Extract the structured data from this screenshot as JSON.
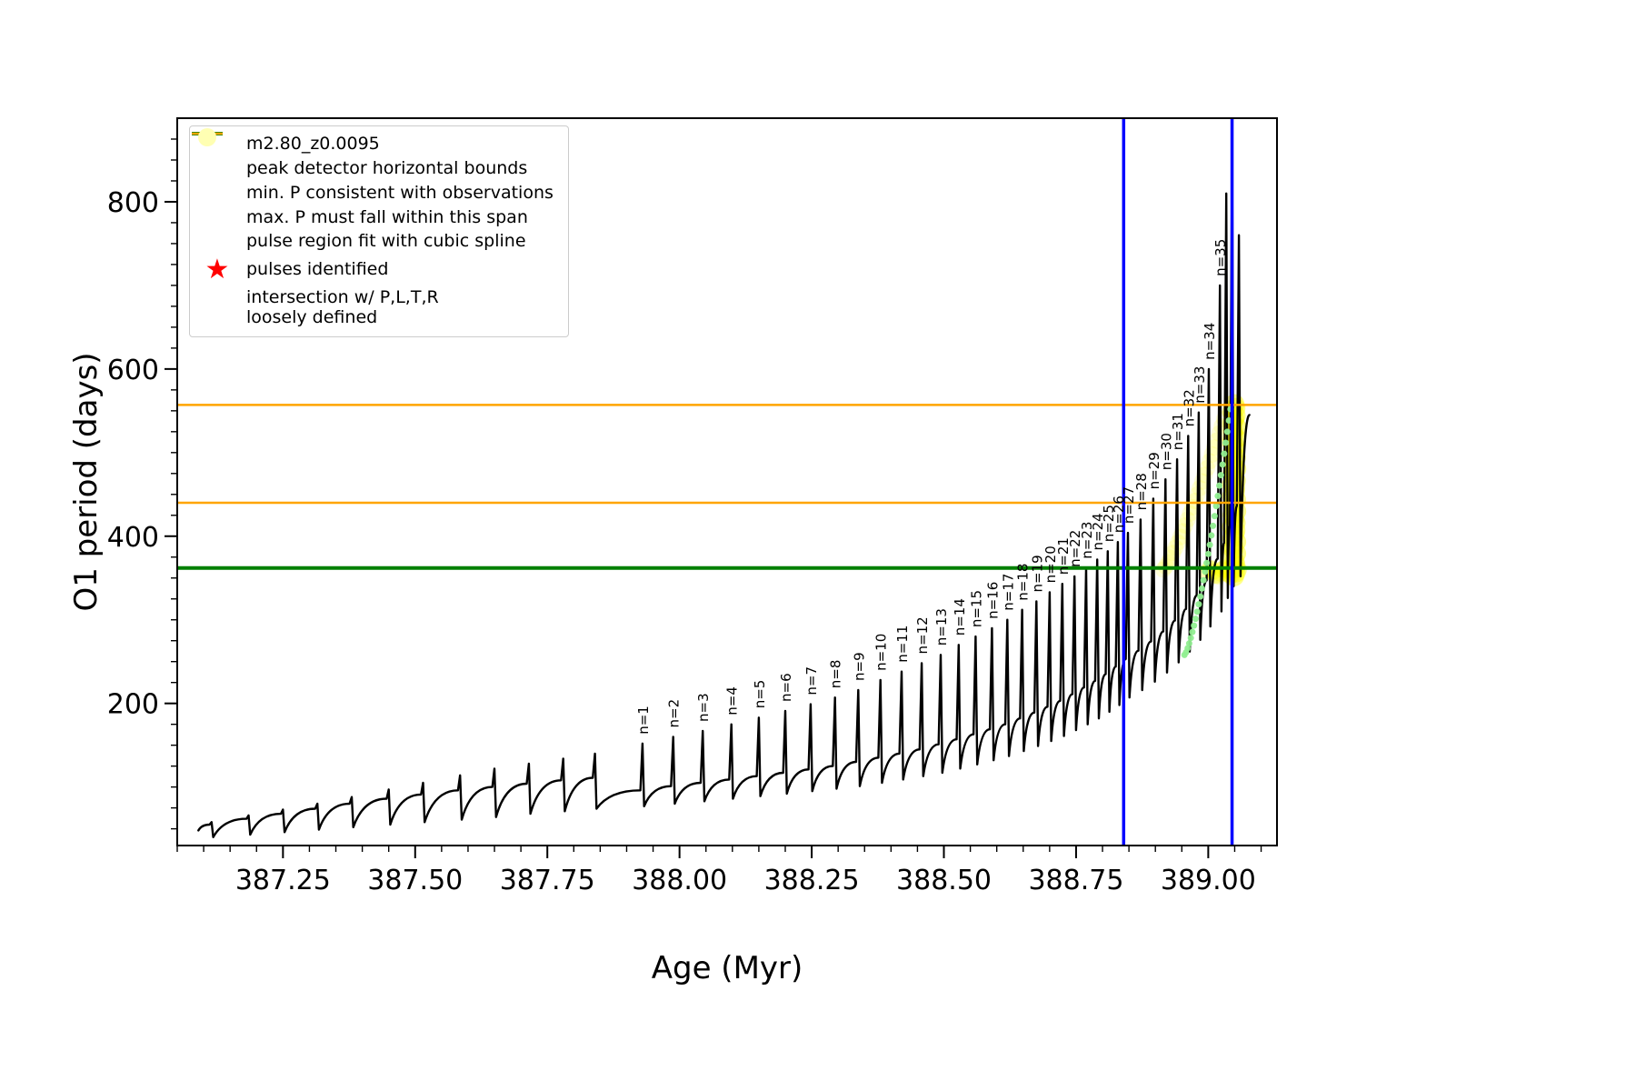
{
  "chart_data": {
    "type": "line",
    "title": "",
    "xlabel": "Age (Myr)",
    "ylabel": "O1 period (days)",
    "xlim": [
      387.05,
      389.13
    ],
    "ylim": [
      30,
      900
    ],
    "xticks": [
      387.25,
      387.5,
      387.75,
      388.0,
      388.25,
      388.5,
      388.75,
      389.0
    ],
    "xtick_labels": [
      "387.25",
      "387.50",
      "387.75",
      "388.00",
      "388.25",
      "388.50",
      "388.75",
      "389.00"
    ],
    "yticks": [
      200,
      400,
      600,
      800
    ],
    "ytick_labels": [
      "200",
      "400",
      "600",
      "800"
    ],
    "x_minor_step": 0.05,
    "y_minor_step": 25,
    "grid": false,
    "legend_position": "upper-left",
    "colors": {
      "series": "#000000",
      "peak_bounds": "#0000ff",
      "min_p": "#008000",
      "max_p": "#ffa500",
      "spline": "#90ee90",
      "pulse_star": "#ff0000",
      "intersection": "#ffff00",
      "intersection_legend": "#ffffb3"
    },
    "hlines": [
      {
        "name": "min-p-consistent",
        "y": 362,
        "color": "#008000",
        "width": 4
      },
      {
        "name": "max-p-span-low",
        "y": 440,
        "color": "#ffa500",
        "width": 2.5
      },
      {
        "name": "max-p-span-high",
        "y": 557,
        "color": "#ffa500",
        "width": 2.5
      }
    ],
    "vlines": [
      {
        "name": "peak-detector-left",
        "x": 388.84,
        "color": "#0000ff",
        "width": 3.5
      },
      {
        "name": "peak-detector-right",
        "x": 389.045,
        "color": "#0000ff",
        "width": 3.5
      }
    ],
    "series_name": "m2.80_z0.0095",
    "curve_start": {
      "x": 387.09,
      "y": 48
    },
    "curve_end": {
      "x": 389.078,
      "y": 545
    },
    "pre_pulses": [
      {
        "x": 387.115,
        "base": 55,
        "peak": 58,
        "dip": 40
      },
      {
        "x": 387.185,
        "base": 62,
        "peak": 66,
        "dip": 43
      },
      {
        "x": 387.25,
        "base": 68,
        "peak": 73,
        "dip": 46
      },
      {
        "x": 387.315,
        "base": 74,
        "peak": 80,
        "dip": 49
      },
      {
        "x": 387.38,
        "base": 80,
        "peak": 88,
        "dip": 52
      },
      {
        "x": 387.45,
        "base": 86,
        "peak": 97,
        "dip": 55
      },
      {
        "x": 387.515,
        "base": 91,
        "peak": 105,
        "dip": 58
      },
      {
        "x": 387.585,
        "base": 96,
        "peak": 114,
        "dip": 61
      },
      {
        "x": 387.65,
        "base": 100,
        "peak": 122,
        "dip": 64
      },
      {
        "x": 387.715,
        "base": 104,
        "peak": 128,
        "dip": 68
      },
      {
        "x": 387.78,
        "base": 108,
        "peak": 134,
        "dip": 71
      },
      {
        "x": 387.84,
        "base": 111,
        "peak": 140,
        "dip": 74
      }
    ],
    "pulses": [
      {
        "n": 1,
        "x": 387.93,
        "base": 96,
        "peak": 152,
        "dip": 77
      },
      {
        "n": 2,
        "x": 387.988,
        "base": 101,
        "peak": 160,
        "dip": 80
      },
      {
        "n": 3,
        "x": 388.044,
        "base": 105,
        "peak": 167,
        "dip": 83
      },
      {
        "n": 4,
        "x": 388.098,
        "base": 109,
        "peak": 175,
        "dip": 86
      },
      {
        "n": 5,
        "x": 388.15,
        "base": 113,
        "peak": 183,
        "dip": 89
      },
      {
        "n": 6,
        "x": 388.2,
        "base": 117,
        "peak": 191,
        "dip": 92
      },
      {
        "n": 7,
        "x": 388.248,
        "base": 121,
        "peak": 199,
        "dip": 95
      },
      {
        "n": 8,
        "x": 388.294,
        "base": 125,
        "peak": 207,
        "dip": 98
      },
      {
        "n": 9,
        "x": 388.338,
        "base": 130,
        "peak": 216,
        "dip": 101
      },
      {
        "n": 10,
        "x": 388.38,
        "base": 135,
        "peak": 228,
        "dip": 105
      },
      {
        "n": 11,
        "x": 388.42,
        "base": 140,
        "peak": 238,
        "dip": 109
      },
      {
        "n": 12,
        "x": 388.458,
        "base": 145,
        "peak": 248,
        "dip": 113
      },
      {
        "n": 13,
        "x": 388.494,
        "base": 151,
        "peak": 258,
        "dip": 117
      },
      {
        "n": 14,
        "x": 388.528,
        "base": 157,
        "peak": 270,
        "dip": 122
      },
      {
        "n": 15,
        "x": 388.56,
        "base": 163,
        "peak": 280,
        "dip": 127
      },
      {
        "n": 16,
        "x": 388.591,
        "base": 169,
        "peak": 290,
        "dip": 132
      },
      {
        "n": 17,
        "x": 388.62,
        "base": 175,
        "peak": 300,
        "dip": 137
      },
      {
        "n": 18,
        "x": 388.648,
        "base": 182,
        "peak": 312,
        "dip": 143
      },
      {
        "n": 19,
        "x": 388.675,
        "base": 189,
        "peak": 322,
        "dip": 149
      },
      {
        "n": 20,
        "x": 388.7,
        "base": 196,
        "peak": 333,
        "dip": 155
      },
      {
        "n": 21,
        "x": 388.724,
        "base": 203,
        "peak": 343,
        "dip": 161
      },
      {
        "n": 22,
        "x": 388.747,
        "base": 211,
        "peak": 352,
        "dip": 168
      },
      {
        "n": 23,
        "x": 388.769,
        "base": 219,
        "peak": 362,
        "dip": 175
      },
      {
        "n": 24,
        "x": 388.79,
        "base": 227,
        "peak": 372,
        "dip": 182
      },
      {
        "n": 25,
        "x": 388.81,
        "base": 235,
        "peak": 382,
        "dip": 190
      },
      {
        "n": 26,
        "x": 388.829,
        "base": 244,
        "peak": 393,
        "dip": 198
      },
      {
        "n": 27,
        "x": 388.848,
        "base": 253,
        "peak": 404,
        "dip": 207
      },
      {
        "n": 28,
        "x": 388.872,
        "base": 263,
        "peak": 420,
        "dip": 216
      },
      {
        "n": 29,
        "x": 388.896,
        "base": 274,
        "peak": 445,
        "dip": 226
      },
      {
        "n": 30,
        "x": 388.919,
        "base": 286,
        "peak": 468,
        "dip": 237
      },
      {
        "n": 31,
        "x": 388.941,
        "base": 299,
        "peak": 492,
        "dip": 249
      },
      {
        "n": 32,
        "x": 388.962,
        "base": 313,
        "peak": 520,
        "dip": 262
      },
      {
        "n": 33,
        "x": 388.982,
        "base": 329,
        "peak": 548,
        "dip": 276
      },
      {
        "n": 34,
        "x": 389.001,
        "base": 347,
        "peak": 600,
        "dip": 292
      },
      {
        "n": 35,
        "x": 389.022,
        "base": 373,
        "peak": 700,
        "dip": 310
      }
    ],
    "post_pulses": [
      {
        "x": 389.034,
        "base": 392,
        "peak": 810,
        "dip": 326
      },
      {
        "x": 389.045,
        "base": 412,
        "peak": 862,
        "dip": 340
      },
      {
        "x": 389.058,
        "base": 436,
        "peak": 760,
        "dip": 352
      }
    ],
    "spline_dots": {
      "color": "#90ee90",
      "x_start": 388.955,
      "x_end": 389.042,
      "y_start": 258,
      "y_end": 552,
      "count": 30
    },
    "yellow_region": {
      "color": "#ffff00",
      "band": {
        "x_start": 388.915,
        "y_start": 360,
        "x_end": 389.03,
        "y_end": 540,
        "count": 26,
        "r": 9,
        "opacity": 0.15
      },
      "column": {
        "x": 389.049,
        "y_start": 352,
        "y_end": 558,
        "count": 46,
        "r": 11,
        "opacity": 0.45
      },
      "base_strip": {
        "x_start": 388.998,
        "x_end": 389.058,
        "y": 357,
        "count": 16,
        "r": 9,
        "opacity": 0.3
      }
    },
    "legend": {
      "items": [
        {
          "label": "m2.80_z0.0095",
          "swatch": "line-marker",
          "color": "#000000"
        },
        {
          "label": "peak detector horizontal bounds",
          "swatch": "line",
          "color": "#0000ff",
          "lw": 4
        },
        {
          "label": "min. P consistent with observations",
          "swatch": "line",
          "color": "#008000",
          "lw": 4
        },
        {
          "label": "max. P must fall within this span",
          "swatch": "line",
          "color": "#ffa500",
          "lw": 2.5
        },
        {
          "label": "pulse region fit with cubic spline",
          "swatch": "dot",
          "color": "#90ee90",
          "r": 4
        },
        {
          "label": "pulses identified",
          "swatch": "star",
          "color": "#ff0000"
        },
        {
          "label": "intersection w/ P,L,T,R",
          "label2": "loosely defined",
          "swatch": "dot",
          "color": "#ffffb3",
          "r": 10
        }
      ]
    }
  }
}
